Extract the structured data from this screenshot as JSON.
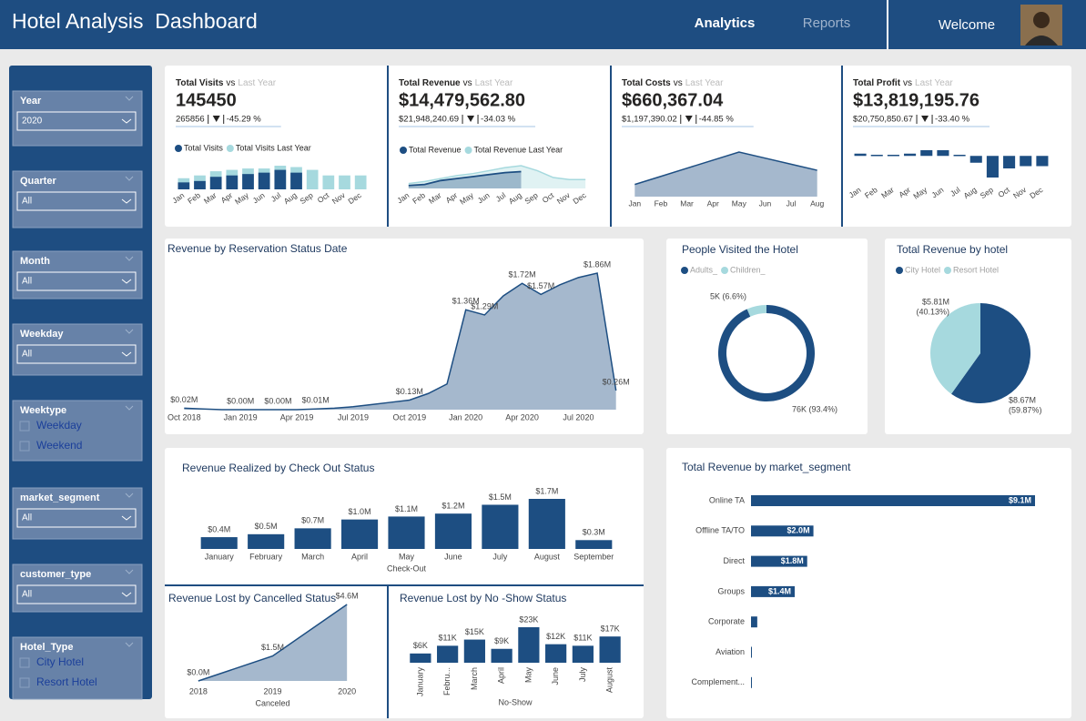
{
  "header": {
    "title": "Hotel Analysis  Dashboard",
    "nav": [
      "Analytics",
      "Reports"
    ],
    "welcome": "Welcome"
  },
  "filters": [
    {
      "label": "Year",
      "value": "2020"
    },
    {
      "label": "Quarter",
      "value": "All"
    },
    {
      "label": "Month",
      "value": "All"
    },
    {
      "label": "Weekday",
      "value": "All"
    },
    {
      "label": "Weektype",
      "options": [
        "Weekday",
        "Weekend"
      ]
    },
    {
      "label": "market_segment",
      "value": "All"
    },
    {
      "label": "customer_type",
      "value": "All"
    },
    {
      "label": "Hotel_Type",
      "options": [
        "City Hotel",
        "Resort Hotel"
      ]
    }
  ],
  "chart_data": [
    {
      "type": "bar",
      "title": "Total Visits",
      "compare": "vs",
      "compare_to": "Last Year",
      "value": "145450",
      "last_year_value": "265856",
      "change": "-45.29 %",
      "categories": [
        "Jan",
        "Feb",
        "Mar",
        "Apr",
        "May",
        "Jun",
        "Jul",
        "Aug",
        "Sep",
        "Oct",
        "Nov",
        "Dec"
      ],
      "series": [
        {
          "name": "Total Visits",
          "color": "#1d4e82",
          "values": [
            5,
            6,
            9,
            10,
            11,
            12,
            14,
            12,
            null,
            null,
            null,
            null
          ]
        },
        {
          "name": "Total Visits Last Year",
          "color": "#a6d9de",
          "values": [
            8,
            10,
            13,
            14,
            15,
            15,
            17,
            16,
            14,
            10,
            10,
            10
          ]
        }
      ]
    },
    {
      "type": "area",
      "title": "Total Revenue",
      "compare": "vs",
      "compare_to": "Last Year",
      "value": "$14,479,562.80",
      "last_year_value": "$21,948,240.69",
      "change": "-34.03 %",
      "categories": [
        "Jan",
        "Feb",
        "Mar",
        "Apr",
        "May",
        "Jun",
        "Jul",
        "Aug",
        "Sep",
        "Oct",
        "Nov",
        "Dec"
      ],
      "series": [
        {
          "name": "Total Revenue",
          "color": "#1d4e82",
          "values": [
            0.3,
            0.4,
            0.8,
            1.0,
            1.2,
            1.4,
            1.6,
            1.7,
            null,
            null,
            null,
            null
          ]
        },
        {
          "name": "Total Revenue Last Year",
          "color": "#a6d9de",
          "values": [
            0.5,
            0.7,
            1.0,
            1.3,
            1.5,
            1.8,
            2.1,
            2.3,
            1.8,
            1.1,
            0.9,
            0.9
          ]
        }
      ]
    },
    {
      "type": "area",
      "title": "Total Costs",
      "compare": "vs",
      "compare_to": "Last Year",
      "value": "$660,367.04",
      "last_year_value": "$1,197,390.02",
      "change": "-44.85 %",
      "categories": [
        "Jan",
        "Feb",
        "Mar",
        "Apr",
        "May",
        "Jun",
        "Jul",
        "Aug"
      ],
      "color": "#1d4e82",
      "values": [
        30,
        50,
        70,
        90,
        110,
        95,
        80,
        65
      ]
    },
    {
      "type": "bar",
      "title": "Total Profit",
      "compare": "vs",
      "compare_to": "Last Year",
      "value": "$13,819,195.76",
      "last_year_value": "$20,750,850.67",
      "change": "-33.40 %",
      "categories": [
        "Jan",
        "Feb",
        "Mar",
        "Apr",
        "May",
        "Jun",
        "Jul",
        "Aug",
        "Sep",
        "Oct",
        "Nov",
        "Dec"
      ],
      "color": "#1d4e82",
      "values": [
        0.1,
        0.05,
        0.05,
        0.1,
        0.25,
        0.25,
        0.05,
        -0.3,
        -0.95,
        -0.55,
        -0.45,
        -0.45
      ]
    },
    {
      "type": "area",
      "title": "Revenue by Reservation Status Date",
      "color": "#1d4e82",
      "categories": [
        "Oct 2018",
        null,
        null,
        "Jan 2019",
        null,
        null,
        "Apr 2019",
        null,
        null,
        "Jul 2019",
        null,
        null,
        "Oct 2019",
        null,
        null,
        "Jan 2020",
        null,
        null,
        "Apr 2020",
        null,
        null,
        "Jul 2020",
        null,
        null
      ],
      "values": [
        0.02,
        0.01,
        0.0,
        0.0,
        0.0,
        0.0,
        0.0,
        0.01,
        0.02,
        0.04,
        0.07,
        0.1,
        0.13,
        0.22,
        0.35,
        1.36,
        1.29,
        1.55,
        1.72,
        1.57,
        1.7,
        1.8,
        1.86,
        0.26
      ],
      "value_labels": [
        "$0.02M",
        null,
        null,
        "$0.00M",
        null,
        "$0.00M",
        null,
        "$0.01M",
        null,
        null,
        null,
        null,
        "$0.13M",
        null,
        null,
        "$1.36M",
        "$1.29M",
        null,
        "$1.72M",
        "$1.57M",
        null,
        null,
        "$1.86M",
        "$0.26M"
      ]
    },
    {
      "type": "donut",
      "title": "People Visited the Hotel",
      "categories": [
        "Adults_",
        "Children_"
      ],
      "colors": [
        "#1d4e82",
        "#a6d9de"
      ],
      "values": [
        93.4,
        6.6
      ],
      "value_labels": [
        "76K (93.4%)",
        "5K (6.6%)"
      ]
    },
    {
      "type": "pie",
      "title": "Total Revenue by hotel",
      "categories": [
        "City Hotel",
        "Resort Hotel"
      ],
      "colors": [
        "#1d4e82",
        "#a6d9de"
      ],
      "values": [
        8.67,
        5.81
      ],
      "value_labels": [
        "$8.67M",
        "$5.81M"
      ],
      "percent_labels": [
        "(59.87%)",
        "(40.13%)"
      ]
    },
    {
      "type": "bar",
      "title": "Revenue Realized by Check Out Status",
      "x_label": "Check-Out",
      "color": "#1d4e82",
      "categories": [
        "January",
        "February",
        "March",
        "April",
        "May",
        "June",
        "July",
        "August",
        "September"
      ],
      "values": [
        0.4,
        0.5,
        0.7,
        1.0,
        1.1,
        1.2,
        1.5,
        1.7,
        0.3
      ],
      "value_labels": [
        "$0.4M",
        "$0.5M",
        "$0.7M",
        "$1.0M",
        "$1.1M",
        "$1.2M",
        "$1.5M",
        "$1.7M",
        "$0.3M"
      ]
    },
    {
      "type": "area",
      "title": "Revenue Lost by Cancelled Status",
      "x_label": "Canceled",
      "color": "#1d4e82",
      "categories": [
        "2018",
        "2019",
        "2020"
      ],
      "values": [
        0.0,
        1.5,
        4.6
      ],
      "value_labels": [
        "$0.0M",
        "$1.5M",
        "$4.6M"
      ]
    },
    {
      "type": "bar",
      "title": "Revenue Lost by No -Show Status",
      "x_label": "No-Show",
      "color": "#1d4e82",
      "categories": [
        "January",
        "Febru...",
        "March",
        "April",
        "May",
        "June",
        "July",
        "August"
      ],
      "values": [
        6,
        11,
        15,
        9,
        23,
        12,
        11,
        17
      ],
      "value_labels": [
        "$6K",
        "$11K",
        "$15K",
        "$9K",
        "$23K",
        "$12K",
        "$11K",
        "$17K"
      ]
    },
    {
      "type": "hbar",
      "title": "Total Revenue by market_segment",
      "color": "#1d4e82",
      "categories": [
        "Online TA",
        "Offline TA/TO",
        "Direct",
        "Groups",
        "Corporate",
        "Aviation",
        "Complement..."
      ],
      "values": [
        9.1,
        2.0,
        1.8,
        1.4,
        0.2,
        0.02,
        0.01
      ],
      "value_labels": [
        "$9.1M",
        "$2.0M",
        "$1.8M",
        "$1.4M",
        null,
        null,
        null
      ]
    }
  ]
}
